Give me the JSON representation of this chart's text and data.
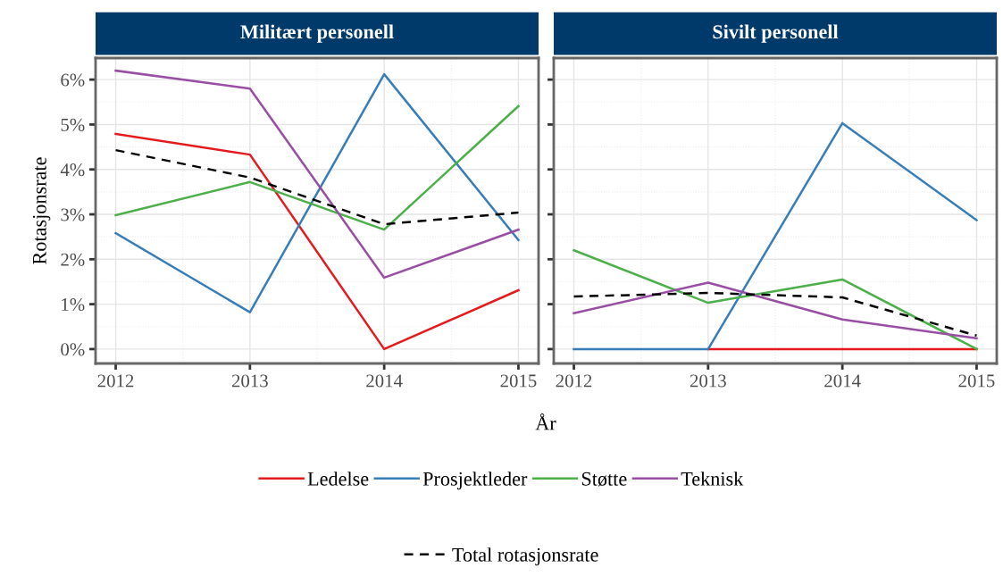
{
  "chart_data": [
    {
      "type": "line",
      "title": "Militært personell",
      "xlabel": "År",
      "ylabel": "Rotasjonsrate",
      "x": [
        2012,
        2013,
        2014,
        2015
      ],
      "xlim": [
        2011.85,
        2015.15
      ],
      "xticks": [
        2012,
        2013,
        2014,
        2015
      ],
      "ylim": [
        -0.32,
        6.48
      ],
      "yticks": [
        {
          "value": 0,
          "label": "0%"
        },
        {
          "value": 1,
          "label": "1%"
        },
        {
          "value": 2,
          "label": "2%"
        },
        {
          "value": 3,
          "label": "3%"
        },
        {
          "value": 4,
          "label": "4%"
        },
        {
          "value": 5,
          "label": "5%"
        },
        {
          "value": 6,
          "label": "6%"
        }
      ],
      "grid": true,
      "legend": "bottom",
      "marker": "none",
      "series": [
        {
          "name": "Ledelse",
          "color": "#e41a1c",
          "values": [
            4.79,
            4.33,
            0,
            1.31
          ]
        },
        {
          "name": "Prosjektleder",
          "color": "#377eb8",
          "values": [
            2.58,
            0.82,
            6.12,
            2.43
          ]
        },
        {
          "name": "Støtte",
          "color": "#4daf4a",
          "values": [
            2.98,
            3.72,
            2.66,
            5.41
          ]
        },
        {
          "name": "Teknisk",
          "color": "#984ea3",
          "values": [
            6.2,
            5.8,
            1.59,
            2.66
          ]
        },
        {
          "name": "Total rotasjonsrate",
          "color": "#000000",
          "line_style": "dashed",
          "values": [
            4.43,
            3.82,
            2.78,
            3.04
          ]
        }
      ]
    },
    {
      "type": "line",
      "title": "Sivilt personell",
      "x": [
        2012,
        2013,
        2014,
        2015
      ],
      "xlim": [
        2011.85,
        2015.15
      ],
      "xticks": [
        2012,
        2013,
        2014,
        2015
      ],
      "ylim": [
        -0.32,
        6.48
      ],
      "yticks": [
        {
          "value": 0,
          "label": null
        },
        {
          "value": 1,
          "label": null
        },
        {
          "value": 2,
          "label": null
        },
        {
          "value": 3,
          "label": null
        },
        {
          "value": 4,
          "label": null
        },
        {
          "value": 5,
          "label": null
        },
        {
          "value": 6,
          "label": null
        }
      ],
      "tick_labels": "x",
      "grid": true,
      "marker": "none",
      "series": [
        {
          "color": "#e41a1c",
          "values": [
            null,
            0,
            0,
            0
          ]
        },
        {
          "color": "#377eb8",
          "values": [
            0,
            0,
            5.03,
            2.87
          ]
        },
        {
          "color": "#4daf4a",
          "values": [
            2.2,
            1.03,
            1.55,
            0
          ]
        },
        {
          "color": "#984ea3",
          "values": [
            0.8,
            1.48,
            0.66,
            0.24
          ]
        },
        {
          "color": "#000000",
          "line_style": "dashed",
          "values": [
            1.17,
            1.25,
            1.15,
            0.3
          ]
        }
      ]
    }
  ]
}
